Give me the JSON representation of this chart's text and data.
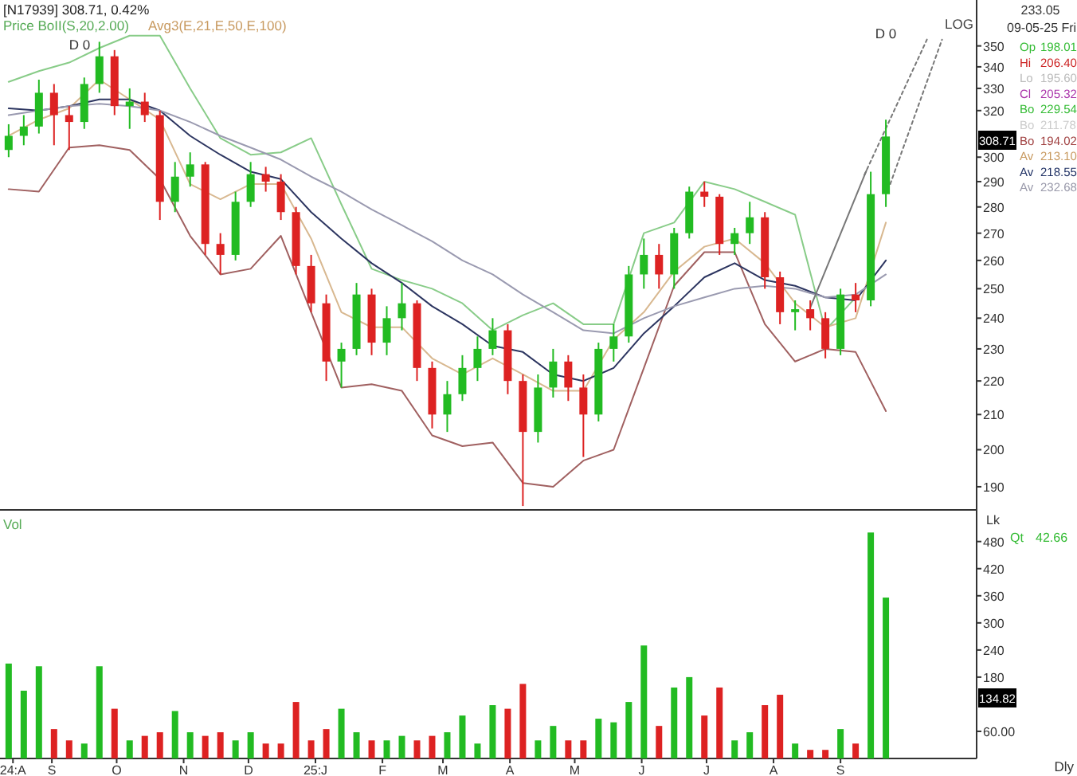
{
  "chart_data": [
    {
      "type": "candlestick",
      "title": "[N17939] 308.71, 0.42%",
      "log": "y",
      "tick_labels": "y",
      "xlim": [
        "2024-08-08",
        "2025-11-03"
      ],
      "ylim": [
        184,
        373
      ],
      "yticks": [
        190,
        200,
        210,
        220,
        230,
        240,
        250,
        260,
        270,
        280,
        290,
        300,
        320,
        330,
        340,
        350
      ],
      "x": [
        "2024-08-12",
        "2024-08-19",
        "2024-08-26",
        "2024-09-02",
        "2024-09-09",
        "2024-09-16",
        "2024-09-23",
        "2024-09-30",
        "2024-10-07",
        "2024-10-14",
        "2024-10-21",
        "2024-10-28",
        "2024-11-04",
        "2024-11-11",
        "2024-11-18",
        "2024-11-25",
        "2024-12-02",
        "2024-12-09",
        "2024-12-16",
        "2024-12-23",
        "2024-12-30",
        "2025-01-06",
        "2025-01-13",
        "2025-01-20",
        "2025-01-27",
        "2025-02-03",
        "2025-02-10",
        "2025-02-17",
        "2025-02-24",
        "2025-03-03",
        "2025-03-10",
        "2025-03-17",
        "2025-03-24",
        "2025-03-31",
        "2025-04-07",
        "2025-04-14",
        "2025-04-21",
        "2025-04-28",
        "2025-05-05",
        "2025-05-12",
        "2025-05-19",
        "2025-05-26",
        "2025-06-02",
        "2025-06-09",
        "2025-06-16",
        "2025-06-23",
        "2025-06-30",
        "2025-07-07",
        "2025-07-14",
        "2025-07-21",
        "2025-07-28",
        "2025-08-04",
        "2025-08-11",
        "2025-08-18",
        "2025-08-25",
        "2025-09-01",
        "2025-09-08",
        "2025-09-15",
        "2025-09-22"
      ],
      "ohlc": [
        [
          303,
          314,
          300,
          309
        ],
        [
          309,
          318,
          305,
          313
        ],
        [
          313,
          334,
          310,
          328
        ],
        [
          328,
          332,
          305,
          318
        ],
        [
          318,
          322,
          303,
          315
        ],
        [
          315,
          335,
          312,
          332
        ],
        [
          332,
          352,
          328,
          345
        ],
        [
          345,
          348,
          318,
          322
        ],
        [
          322,
          330,
          312,
          324
        ],
        [
          324,
          328,
          315,
          318
        ],
        [
          318,
          320,
          275,
          282
        ],
        [
          282,
          298,
          278,
          292
        ],
        [
          292,
          302,
          288,
          297
        ],
        [
          297,
          298,
          262,
          266
        ],
        [
          266,
          270,
          255,
          262
        ],
        [
          262,
          286,
          260,
          282
        ],
        [
          282,
          298,
          280,
          293
        ],
        [
          293,
          296,
          286,
          290
        ],
        [
          290,
          293,
          275,
          278
        ],
        [
          278,
          280,
          255,
          258
        ],
        [
          258,
          262,
          242,
          245
        ],
        [
          245,
          248,
          220,
          226
        ],
        [
          226,
          232,
          218,
          230
        ],
        [
          230,
          252,
          228,
          248
        ],
        [
          248,
          250,
          228,
          232
        ],
        [
          232,
          244,
          228,
          240
        ],
        [
          240,
          252,
          236,
          245
        ],
        [
          245,
          246,
          220,
          224
        ],
        [
          224,
          226,
          206,
          210
        ],
        [
          210,
          220,
          205,
          216
        ],
        [
          216,
          228,
          214,
          224
        ],
        [
          224,
          234,
          220,
          230
        ],
        [
          230,
          240,
          228,
          236
        ],
        [
          236,
          238,
          216,
          220
        ],
        [
          220,
          222,
          185,
          205
        ],
        [
          205,
          222,
          202,
          218
        ],
        [
          218,
          230,
          215,
          226
        ],
        [
          226,
          228,
          214,
          218
        ],
        [
          218,
          222,
          198,
          210
        ],
        [
          210,
          232,
          208,
          230
        ],
        [
          230,
          238,
          226,
          234
        ],
        [
          234,
          258,
          232,
          255
        ],
        [
          255,
          268,
          250,
          262
        ],
        [
          262,
          266,
          250,
          255
        ],
        [
          255,
          272,
          250,
          270
        ],
        [
          270,
          288,
          268,
          286
        ],
        [
          286,
          290,
          280,
          284
        ],
        [
          284,
          285,
          262,
          266
        ],
        [
          266,
          272,
          262,
          270
        ],
        [
          270,
          282,
          266,
          276
        ],
        [
          276,
          278,
          250,
          254
        ],
        [
          254,
          256,
          238,
          242
        ],
        [
          242,
          246,
          236,
          243
        ],
        [
          243,
          246,
          236,
          240
        ],
        [
          240,
          242,
          227,
          230
        ],
        [
          230,
          250,
          228,
          248
        ],
        [
          248,
          252,
          242,
          246
        ],
        [
          246,
          294,
          244,
          285
        ],
        [
          285,
          316,
          280,
          308.71
        ]
      ],
      "colors": [
        "#22bb22",
        "#22bb22",
        "#22bb22",
        "#dd2222",
        "#dd2222",
        "#22bb22",
        "#22bb22",
        "#dd2222",
        "#22bb22",
        "#dd2222",
        "#dd2222",
        "#22bb22",
        "#22bb22",
        "#dd2222",
        "#dd2222",
        "#22bb22",
        "#22bb22",
        "#dd2222",
        "#dd2222",
        "#dd2222",
        "#dd2222",
        "#dd2222",
        "#22bb22",
        "#22bb22",
        "#dd2222",
        "#22bb22",
        "#22bb22",
        "#dd2222",
        "#dd2222",
        "#22bb22",
        "#22bb22",
        "#22bb22",
        "#22bb22",
        "#dd2222",
        "#dd2222",
        "#22bb22",
        "#22bb22",
        "#dd2222",
        "#dd2222",
        "#22bb22",
        "#22bb22",
        "#22bb22",
        "#22bb22",
        "#dd2222",
        "#22bb22",
        "#22bb22",
        "#dd2222",
        "#dd2222",
        "#22bb22",
        "#22bb22",
        "#dd2222",
        "#dd2222",
        "#22bb22",
        "#dd2222",
        "#dd2222",
        "#22bb22",
        "#dd2222",
        "#22bb22",
        "#22bb22"
      ],
      "series": [
        {
          "type": "line",
          "color": "#88cc88",
          "x": [
            "2024-08-12",
            "2024-08-26",
            "2024-09-09",
            "2024-09-23",
            "2024-10-07",
            "2024-10-21",
            "2024-11-04",
            "2024-11-18",
            "2024-12-02",
            "2024-12-16",
            "2024-12-30",
            "2025-01-13",
            "2025-01-27",
            "2025-02-10",
            "2025-02-24",
            "2025-03-10",
            "2025-03-24",
            "2025-04-07",
            "2025-04-21",
            "2025-05-05",
            "2025-05-19",
            "2025-06-02",
            "2025-06-16",
            "2025-06-30",
            "2025-07-14",
            "2025-07-28",
            "2025-08-11",
            "2025-08-25",
            "2025-09-08"
          ],
          "values": [
            333,
            338,
            342,
            349,
            355,
            355,
            330,
            308,
            301,
            302,
            308,
            281,
            257,
            253,
            250,
            245,
            236,
            241,
            245,
            238,
            238,
            270,
            274,
            290,
            287,
            282,
            277,
            236,
            247
          ]
        },
        {
          "type": "line",
          "color": "#a06060",
          "x": [
            "2024-08-12",
            "2024-08-26",
            "2024-09-09",
            "2024-09-23",
            "2024-10-07",
            "2024-10-21",
            "2024-11-04",
            "2024-11-18",
            "2024-12-02",
            "2024-12-16",
            "2024-12-30",
            "2025-01-13",
            "2025-01-27",
            "2025-02-10",
            "2025-02-24",
            "2025-03-10",
            "2025-03-24",
            "2025-04-07",
            "2025-04-21",
            "2025-05-05",
            "2025-05-19",
            "2025-06-02",
            "2025-06-16",
            "2025-06-30",
            "2025-07-14",
            "2025-07-28",
            "2025-08-11",
            "2025-08-25",
            "2025-09-08",
            "2025-09-22"
          ],
          "values": [
            287,
            286,
            304,
            305,
            303,
            291,
            269,
            255,
            257,
            269,
            242,
            218,
            219,
            217,
            204,
            201,
            202,
            191,
            190,
            197,
            200,
            224,
            251,
            263,
            263,
            238,
            226,
            230,
            229,
            211
          ]
        },
        {
          "type": "line",
          "color": "#d8b890",
          "x": [
            "2024-08-12",
            "2024-08-26",
            "2024-09-09",
            "2024-09-23",
            "2024-10-07",
            "2024-10-21",
            "2024-11-04",
            "2024-11-18",
            "2024-12-02",
            "2024-12-16",
            "2024-12-30",
            "2025-01-13",
            "2025-01-27",
            "2025-02-10",
            "2025-02-24",
            "2025-03-10",
            "2025-03-24",
            "2025-04-07",
            "2025-04-21",
            "2025-05-05",
            "2025-05-19",
            "2025-06-02",
            "2025-06-16",
            "2025-06-30",
            "2025-07-14",
            "2025-07-28",
            "2025-08-11",
            "2025-08-25",
            "2025-09-08",
            "2025-09-22"
          ],
          "values": [
            309,
            316,
            321,
            334,
            325,
            316,
            289,
            283,
            289,
            289,
            268,
            242,
            237,
            237,
            227,
            222,
            227,
            222,
            217,
            217,
            233,
            242,
            256,
            265,
            268,
            259,
            245,
            237,
            240,
            274
          ]
        },
        {
          "type": "line",
          "color": "#2c3560",
          "x": [
            "2024-08-12",
            "2024-08-26",
            "2024-09-09",
            "2024-09-23",
            "2024-10-07",
            "2024-10-21",
            "2024-11-04",
            "2024-11-18",
            "2024-12-02",
            "2024-12-16",
            "2024-12-30",
            "2025-01-13",
            "2025-01-27",
            "2025-02-10",
            "2025-02-24",
            "2025-03-10",
            "2025-03-24",
            "2025-04-07",
            "2025-04-21",
            "2025-05-05",
            "2025-05-19",
            "2025-06-02",
            "2025-06-16",
            "2025-06-30",
            "2025-07-14",
            "2025-07-28",
            "2025-08-11",
            "2025-08-25",
            "2025-09-08",
            "2025-09-22"
          ],
          "values": [
            321,
            320,
            322,
            325,
            325,
            320,
            309,
            301,
            294,
            291,
            278,
            268,
            259,
            252,
            244,
            238,
            231,
            229,
            222,
            220,
            224,
            235,
            244,
            254,
            259,
            253,
            251,
            247,
            246,
            260
          ]
        },
        {
          "type": "line",
          "color": "#9a9ab0",
          "x": [
            "2024-08-12",
            "2024-08-26",
            "2024-09-09",
            "2024-09-23",
            "2024-10-07",
            "2024-10-21",
            "2024-11-04",
            "2024-11-18",
            "2024-12-02",
            "2024-12-16",
            "2024-12-30",
            "2025-01-13",
            "2025-01-27",
            "2025-02-10",
            "2025-02-24",
            "2025-03-10",
            "2025-03-24",
            "2025-04-07",
            "2025-04-21",
            "2025-05-05",
            "2025-05-19",
            "2025-06-02",
            "2025-06-16",
            "2025-06-30",
            "2025-07-14",
            "2025-07-28",
            "2025-08-11",
            "2025-08-25",
            "2025-09-08",
            "2025-09-22"
          ],
          "values": [
            318,
            320,
            322,
            323,
            322,
            320,
            315,
            309,
            304,
            299,
            292,
            286,
            279,
            273,
            267,
            260,
            255,
            248,
            242,
            236,
            235,
            240,
            244,
            247,
            250,
            251,
            250,
            247,
            248,
            255
          ]
        },
        {
          "type": "line",
          "color": "#777777",
          "line_style": "solid",
          "x": [
            "2025-08-18",
            "2025-09-13"
          ],
          "values": [
            243.5,
            294.5
          ]
        },
        {
          "type": "line",
          "color": "#777777",
          "line_style": "dashed",
          "x": [
            "2025-09-12",
            "2025-10-11"
          ],
          "values": [
            292.6,
            353.1
          ]
        },
        {
          "type": "line",
          "color": "#777777",
          "line_style": "dashed",
          "x": [
            "2025-09-24",
            "2025-10-18"
          ],
          "values": [
            289,
            353.1
          ]
        }
      ],
      "annotations": [
        "Price BoII(S,20,2.00)",
        "Avg3(E,21,E,50,E,100)",
        "LOG",
        "233.05",
        "09-05-25 Fri",
        "Op 198.01",
        "Hi 206.40",
        "Lo 195.60",
        "Cl 205.32",
        "Bo 229.54",
        "Bo 211.78",
        "Bo 194.02",
        "Av 213.10",
        "Av 218.55",
        "Av 232.68",
        "D 0",
        "D 0",
        "308.71"
      ]
    },
    {
      "type": "bar",
      "title": "Vol",
      "ylabel": "Lk",
      "xlim": [
        "2024-08-08",
        "2025-11-03"
      ],
      "ylim": [
        0,
        550
      ],
      "yticks": [
        {
          "value": 60,
          "label": "60.00"
        },
        180,
        240,
        300,
        360,
        420,
        480
      ],
      "xticks": [
        {
          "value": "2024-08-14",
          "label": "24:A"
        },
        {
          "value": "2024-09-01",
          "label": "S"
        },
        {
          "value": "2024-10-01",
          "label": "O"
        },
        {
          "value": "2024-11-01",
          "label": "N"
        },
        {
          "value": "2024-12-01",
          "label": "D"
        },
        {
          "value": "2025-01-01",
          "label": "25:J"
        },
        {
          "value": "2025-02-01",
          "label": "F"
        },
        {
          "value": "2025-03-01",
          "label": "M"
        },
        {
          "value": "2025-04-01",
          "label": "A"
        },
        {
          "value": "2025-05-01",
          "label": "M"
        },
        {
          "value": "2025-06-01",
          "label": "J"
        },
        {
          "value": "2025-07-01",
          "label": "J"
        },
        {
          "value": "2025-08-01",
          "label": "A"
        },
        {
          "value": "2025-09-01",
          "label": "S"
        }
      ],
      "x": [
        "2024-08-12",
        "2024-08-19",
        "2024-08-26",
        "2024-09-02",
        "2024-09-09",
        "2024-09-16",
        "2024-09-23",
        "2024-09-30",
        "2024-10-07",
        "2024-10-14",
        "2024-10-21",
        "2024-10-28",
        "2024-11-04",
        "2024-11-11",
        "2024-11-18",
        "2024-11-25",
        "2024-12-02",
        "2024-12-09",
        "2024-12-16",
        "2024-12-23",
        "2024-12-30",
        "2025-01-06",
        "2025-01-13",
        "2025-01-20",
        "2025-01-27",
        "2025-02-03",
        "2025-02-10",
        "2025-02-17",
        "2025-02-24",
        "2025-03-03",
        "2025-03-10",
        "2025-03-17",
        "2025-03-24",
        "2025-03-31",
        "2025-04-07",
        "2025-04-14",
        "2025-04-21",
        "2025-04-28",
        "2025-05-05",
        "2025-05-12",
        "2025-05-19",
        "2025-05-26",
        "2025-06-02",
        "2025-06-09",
        "2025-06-16",
        "2025-06-23",
        "2025-06-30",
        "2025-07-07",
        "2025-07-14",
        "2025-07-21",
        "2025-07-28",
        "2025-08-04",
        "2025-08-11",
        "2025-08-18",
        "2025-08-25",
        "2025-09-01",
        "2025-09-08",
        "2025-09-15",
        "2025-09-22"
      ],
      "values": [
        210,
        150,
        204,
        65,
        40,
        33,
        204,
        110,
        40,
        50,
        58,
        105,
        58,
        50,
        58,
        40,
        58,
        33,
        33,
        125,
        40,
        65,
        110,
        58,
        40,
        40,
        50,
        40,
        50,
        58,
        95,
        33,
        118,
        110,
        165,
        40,
        72,
        40,
        40,
        88,
        80,
        125,
        250,
        72,
        157,
        180,
        95,
        157,
        40,
        58,
        118,
        141,
        33,
        19,
        19,
        65,
        33,
        500,
        356
      ],
      "colors": [
        "#22bb22",
        "#22bb22",
        "#22bb22",
        "#dd2222",
        "#dd2222",
        "#22bb22",
        "#22bb22",
        "#dd2222",
        "#22bb22",
        "#dd2222",
        "#dd2222",
        "#22bb22",
        "#22bb22",
        "#dd2222",
        "#dd2222",
        "#22bb22",
        "#22bb22",
        "#dd2222",
        "#dd2222",
        "#dd2222",
        "#dd2222",
        "#dd2222",
        "#22bb22",
        "#22bb22",
        "#dd2222",
        "#22bb22",
        "#22bb22",
        "#dd2222",
        "#dd2222",
        "#22bb22",
        "#22bb22",
        "#22bb22",
        "#22bb22",
        "#dd2222",
        "#dd2222",
        "#22bb22",
        "#22bb22",
        "#dd2222",
        "#dd2222",
        "#22bb22",
        "#22bb22",
        "#22bb22",
        "#22bb22",
        "#dd2222",
        "#22bb22",
        "#22bb22",
        "#dd2222",
        "#dd2222",
        "#22bb22",
        "#22bb22",
        "#dd2222",
        "#dd2222",
        "#22bb22",
        "#dd2222",
        "#dd2222",
        "#22bb22",
        "#dd2222",
        "#22bb22",
        "#22bb22"
      ],
      "annotations": [
        "Qt 42.66",
        "Dly",
        "134.82"
      ]
    }
  ]
}
